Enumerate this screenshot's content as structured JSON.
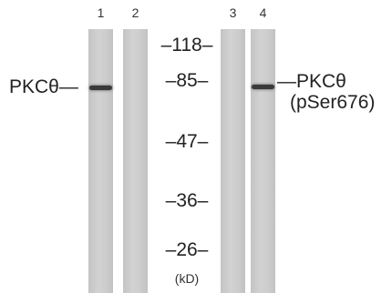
{
  "lanes": [
    "1",
    "2",
    "3",
    "4"
  ],
  "markers": [
    118,
    85,
    47,
    36,
    26
  ],
  "unit": "(kD)",
  "left_label": "PKCθ",
  "right_label": {
    "name": "PKCθ",
    "site": "(pSer676)"
  }
}
